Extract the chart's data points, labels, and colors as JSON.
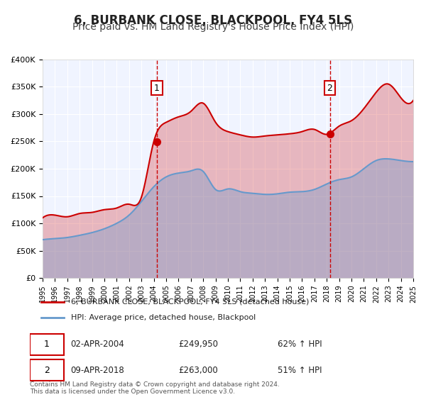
{
  "title": "6, BURBANK CLOSE, BLACKPOOL, FY4 5LS",
  "subtitle": "Price paid vs. HM Land Registry's House Price Index (HPI)",
  "title_fontsize": 12,
  "subtitle_fontsize": 10,
  "background_color": "#ffffff",
  "plot_bg_color": "#f0f4ff",
  "grid_color": "#ffffff",
  "red_line_color": "#cc0000",
  "blue_line_color": "#6699cc",
  "red_fill_color": "#ffcccc",
  "blue_fill_color": "#cce0ff",
  "marker1_date_idx": 9.25,
  "marker1_value": 249950,
  "marker1_label": "1",
  "marker1_date_str": "02-APR-2004",
  "marker1_price_str": "£249,950",
  "marker1_pct_str": "62% ↑ HPI",
  "marker2_date_idx": 23.25,
  "marker2_value": 263000,
  "marker2_label": "2",
  "marker2_date_str": "09-APR-2018",
  "marker2_price_str": "£263,000",
  "marker2_pct_str": "51% ↑ HPI",
  "legend_label_red": "6, BURBANK CLOSE, BLACKPOOL, FY4 5LS (detached house)",
  "legend_label_blue": "HPI: Average price, detached house, Blackpool",
  "footer_text": "Contains HM Land Registry data © Crown copyright and database right 2024.\nThis data is licensed under the Open Government Licence v3.0.",
  "xmin": 1995,
  "xmax": 2025,
  "ymin": 0,
  "ymax": 400000,
  "yticks": [
    0,
    50000,
    100000,
    150000,
    200000,
    250000,
    300000,
    350000,
    400000
  ],
  "ytick_labels": [
    "£0",
    "£50K",
    "£100K",
    "£150K",
    "£200K",
    "£250K",
    "£300K",
    "£350K",
    "£400K"
  ],
  "xtick_years": [
    1995,
    1996,
    1997,
    1998,
    1999,
    2000,
    2001,
    2002,
    2003,
    2004,
    2005,
    2006,
    2007,
    2008,
    2009,
    2010,
    2011,
    2012,
    2013,
    2014,
    2015,
    2016,
    2017,
    2018,
    2019,
    2020,
    2021,
    2022,
    2023,
    2024,
    2025
  ],
  "hpi_x": [
    1995,
    1996,
    1997,
    1998,
    1999,
    2000,
    2001,
    2002,
    2003,
    2004,
    2005,
    2006,
    2007,
    2008,
    2009,
    2010,
    2011,
    2012,
    2013,
    2014,
    2015,
    2016,
    2017,
    2018,
    2019,
    2020,
    2021,
    2022,
    2023,
    2024,
    2025
  ],
  "hpi_y": [
    70000,
    72000,
    74000,
    78000,
    83000,
    90000,
    100000,
    115000,
    140000,
    167000,
    185000,
    192000,
    196000,
    195000,
    162000,
    163000,
    158000,
    155000,
    153000,
    154000,
    157000,
    158000,
    162000,
    172000,
    180000,
    185000,
    200000,
    215000,
    218000,
    215000,
    213000
  ],
  "red_x": [
    1995,
    1996,
    1997,
    1998,
    1999,
    2000,
    2001,
    2002,
    2003,
    2004,
    2005,
    2006,
    2007,
    2008,
    2009,
    2010,
    2011,
    2012,
    2013,
    2014,
    2015,
    2016,
    2017,
    2018,
    2019,
    2020,
    2021,
    2022,
    2023,
    2024,
    2025
  ],
  "red_y": [
    110000,
    115000,
    112000,
    118000,
    120000,
    125000,
    128000,
    135000,
    148000,
    249950,
    285000,
    295000,
    305000,
    320000,
    285000,
    268000,
    262000,
    258000,
    260000,
    262000,
    264000,
    268000,
    272000,
    263000,
    278000,
    288000,
    310000,
    340000,
    355000,
    330000,
    325000
  ]
}
